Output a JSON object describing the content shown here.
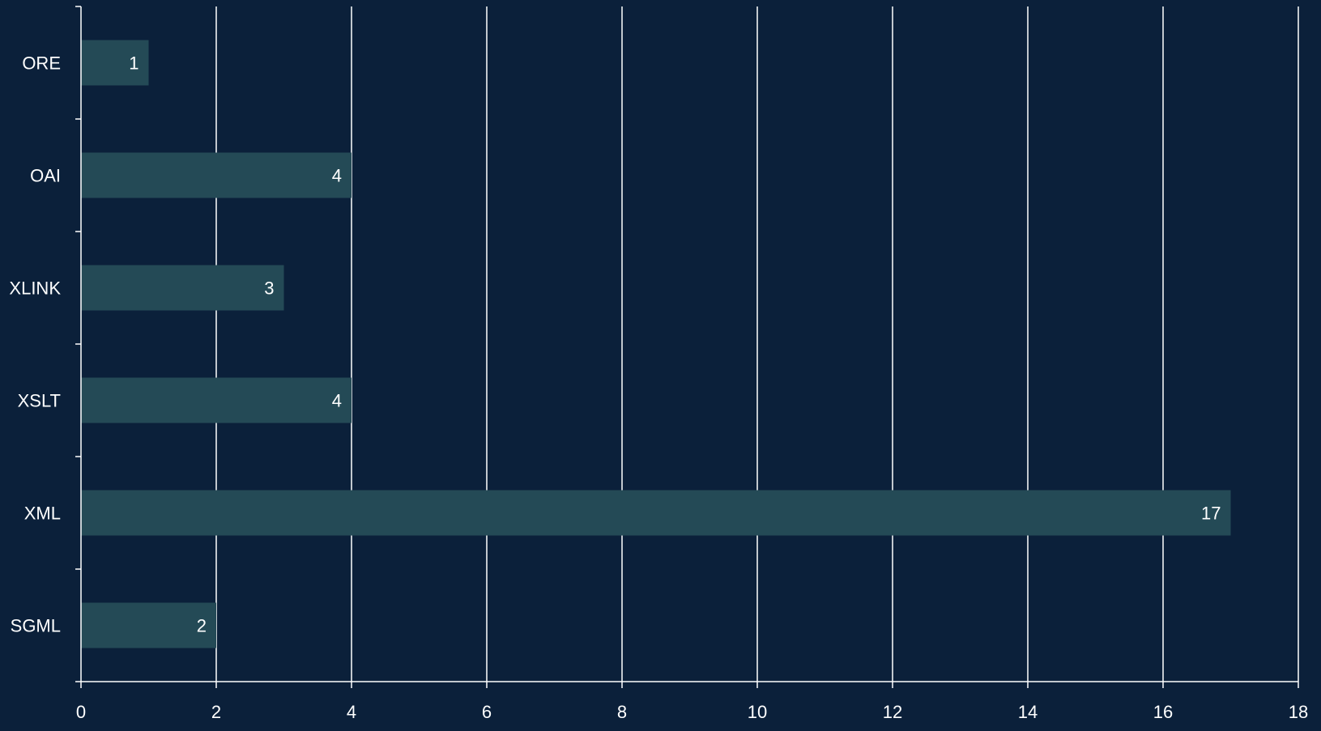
{
  "chart_data": {
    "type": "bar",
    "orientation": "horizontal",
    "categories": [
      "ORE",
      "OAI",
      "XLINK",
      "XSLT",
      "XML",
      "SGML"
    ],
    "values": [
      1,
      4,
      3,
      4,
      17,
      2
    ],
    "title": "",
    "xlabel": "",
    "ylabel": "",
    "xlim": [
      0,
      18
    ],
    "xticks": [
      0,
      2,
      4,
      6,
      8,
      10,
      12,
      14,
      16,
      18
    ],
    "grid": "vertical",
    "legend": "none",
    "data_labels": true,
    "colors": {
      "background": "#0b203a",
      "bar": "#244a56",
      "grid": "#ffffff",
      "text": "#ffffff"
    }
  }
}
